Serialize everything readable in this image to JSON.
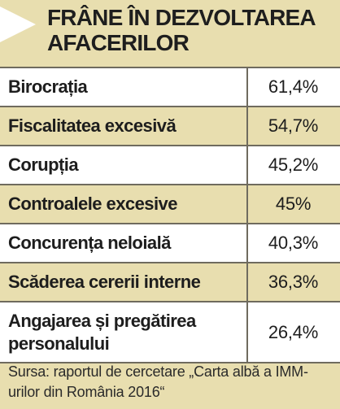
{
  "header": {
    "title": "FRÂNE ÎN DEZVOLTAREA AFACERILOR"
  },
  "table": {
    "rows": [
      {
        "label": "Birocrația",
        "value": "61,4%"
      },
      {
        "label": "Fiscalitatea excesivă",
        "value": "54,7%"
      },
      {
        "label": "Corupția",
        "value": "45,2%"
      },
      {
        "label": "Controalele excesive",
        "value": "45%"
      },
      {
        "label": "Concurența neloială",
        "value": "40,3%"
      },
      {
        "label": "Scăderea cererii interne",
        "value": "36,3%"
      },
      {
        "label": "Angajarea și pregătirea personalului",
        "value": "26,4%"
      }
    ]
  },
  "footer": {
    "source": "Sursa: raportul de cercetare „Carta albă a IMM-urilor din România 2016“"
  }
}
